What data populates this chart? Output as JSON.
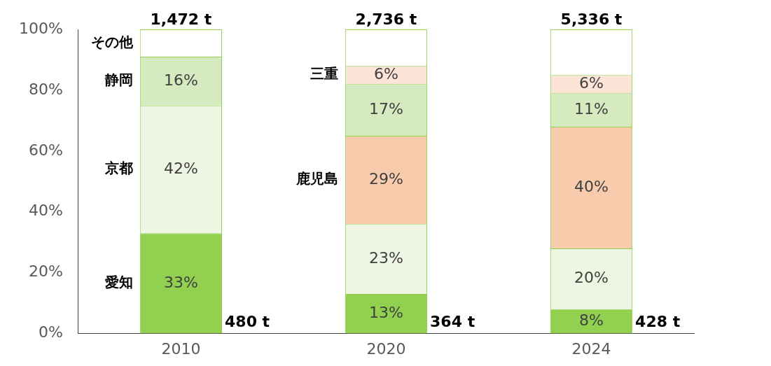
{
  "chart_data": {
    "type": "bar",
    "stacked": true,
    "categories": [
      "2010",
      "2020",
      "2024"
    ],
    "series": [
      {
        "name": "愛知",
        "color": "#92d050",
        "values": [
          33,
          13,
          8
        ],
        "value_labels": [
          "33%",
          "13%",
          "8%"
        ]
      },
      {
        "name": "京都",
        "color": "#eef5e3",
        "values": [
          42,
          23,
          20
        ],
        "value_labels": [
          "42%",
          "23%",
          "20%"
        ]
      },
      {
        "name": "鹿児島",
        "color": "#f8cbad",
        "values": [
          null,
          29,
          40
        ],
        "value_labels": [
          null,
          "29%",
          "40%"
        ]
      },
      {
        "name": "静岡",
        "color": "#d6eac0",
        "values": [
          16,
          17,
          11
        ],
        "value_labels": [
          "16%",
          "17%",
          "11%"
        ]
      },
      {
        "name": "三重",
        "color": "#fce4d6",
        "values": [
          null,
          6,
          6
        ],
        "value_labels": [
          null,
          "6%",
          "6%"
        ]
      },
      {
        "name": "その他",
        "color": "#ffffff",
        "values": [
          9,
          12,
          15
        ],
        "value_labels": [
          null,
          null,
          null
        ]
      }
    ],
    "ylim": [
      0,
      100
    ],
    "yticks": [
      {
        "value": 0,
        "label": "0%"
      },
      {
        "value": 20,
        "label": "20%"
      },
      {
        "value": 40,
        "label": "40%"
      },
      {
        "value": 60,
        "label": "60%"
      },
      {
        "value": 80,
        "label": "80%"
      },
      {
        "value": 100,
        "label": "100%"
      }
    ],
    "grid": false,
    "legend": false,
    "annotations": [
      "1,472 t",
      "2,736 t",
      "5,336 t",
      "480 t",
      "364 t",
      "428 t"
    ]
  }
}
